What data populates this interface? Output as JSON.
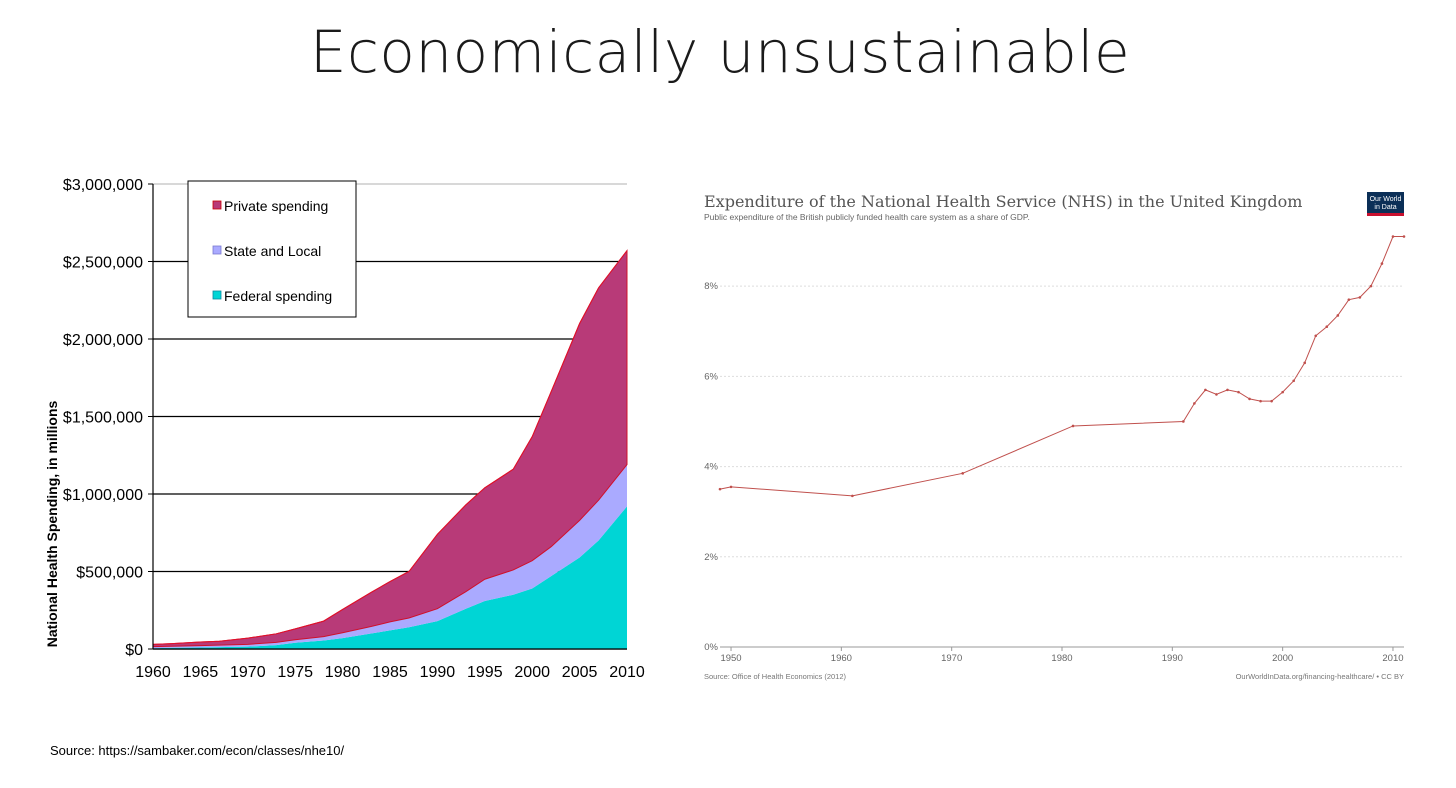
{
  "slide": {
    "title": "Economically unsustainable",
    "source": "Source: https://sambaker.com/econ/classes/nhe10/"
  },
  "chart_data": [
    {
      "type": "area",
      "stacked": true,
      "title": "",
      "xlabel": "",
      "ylabel": "National Health Spending, in millions",
      "x": [
        1960,
        1962,
        1965,
        1967,
        1970,
        1973,
        1975,
        1978,
        1980,
        1983,
        1985,
        1987,
        1990,
        1993,
        1995,
        1998,
        2000,
        2002,
        2005,
        2007,
        2010
      ],
      "xlim": [
        1960,
        2010
      ],
      "ylim": [
        0,
        3000000
      ],
      "x_ticks": [
        "1960",
        "1965",
        "1970",
        "1975",
        "1980",
        "1985",
        "1990",
        "1995",
        "2000",
        "2005",
        "2010"
      ],
      "y_ticks": [
        "$0",
        "$500,000",
        "$1,000,000",
        "$1,500,000",
        "$2,000,000",
        "$2,500,000",
        "$3,000,000"
      ],
      "grid": "horizontal",
      "legend": "top-left",
      "series": [
        {
          "name": "Federal spending",
          "color": "#00d5d5",
          "values": [
            5000,
            8000,
            10000,
            12000,
            15000,
            25000,
            40000,
            55000,
            70000,
            100000,
            120000,
            140000,
            180000,
            260000,
            310000,
            350000,
            390000,
            470000,
            590000,
            700000,
            920000
          ]
        },
        {
          "name": "State and Local",
          "color": "#aaaaff",
          "values": [
            10000,
            10000,
            12000,
            13000,
            15000,
            18000,
            20000,
            25000,
            35000,
            45000,
            55000,
            60000,
            80000,
            110000,
            140000,
            160000,
            180000,
            190000,
            240000,
            260000,
            270000
          ]
        },
        {
          "name": "Private spending",
          "color": "#b83a78",
          "values": [
            15000,
            17000,
            23000,
            25000,
            40000,
            55000,
            70000,
            100000,
            150000,
            220000,
            260000,
            300000,
            480000,
            560000,
            590000,
            650000,
            800000,
            1000000,
            1270000,
            1370000,
            1380000
          ]
        }
      ]
    },
    {
      "type": "line",
      "title": "Expenditure of the National Health Service (NHS) in the United Kingdom",
      "subtitle": "Public expenditure of the British publicly funded health care system as a share of GDP.",
      "source": "Source: Office of Health Economics (2012)",
      "credit": "OurWorldInData.org/financing-healthcare/ • CC BY",
      "logo": [
        "Our World",
        "in Data"
      ],
      "xlim": [
        1949,
        2011
      ],
      "ylim": [
        0,
        9.2
      ],
      "x_ticks": [
        "1950",
        "1960",
        "1970",
        "1980",
        "1990",
        "2000",
        "2010"
      ],
      "y_ticks": [
        "0%",
        "2%",
        "4%",
        "6%",
        "8%"
      ],
      "grid": "horizontal-dotted",
      "series": [
        {
          "name": "",
          "color": "#c0504d",
          "x": [
            1949,
            1950,
            1961,
            1971,
            1981,
            1991,
            1992,
            1993,
            1994,
            1995,
            1996,
            1997,
            1998,
            1999,
            2000,
            2001,
            2002,
            2003,
            2004,
            2005,
            2006,
            2007,
            2008,
            2009,
            2010,
            2011
          ],
          "y": [
            3.5,
            3.55,
            3.35,
            3.85,
            4.9,
            5.0,
            5.4,
            5.7,
            5.6,
            5.7,
            5.65,
            5.5,
            5.45,
            5.45,
            5.65,
            5.9,
            6.3,
            6.9,
            7.1,
            7.35,
            7.7,
            7.75,
            8.0,
            8.5,
            9.1,
            9.1
          ]
        }
      ]
    }
  ]
}
